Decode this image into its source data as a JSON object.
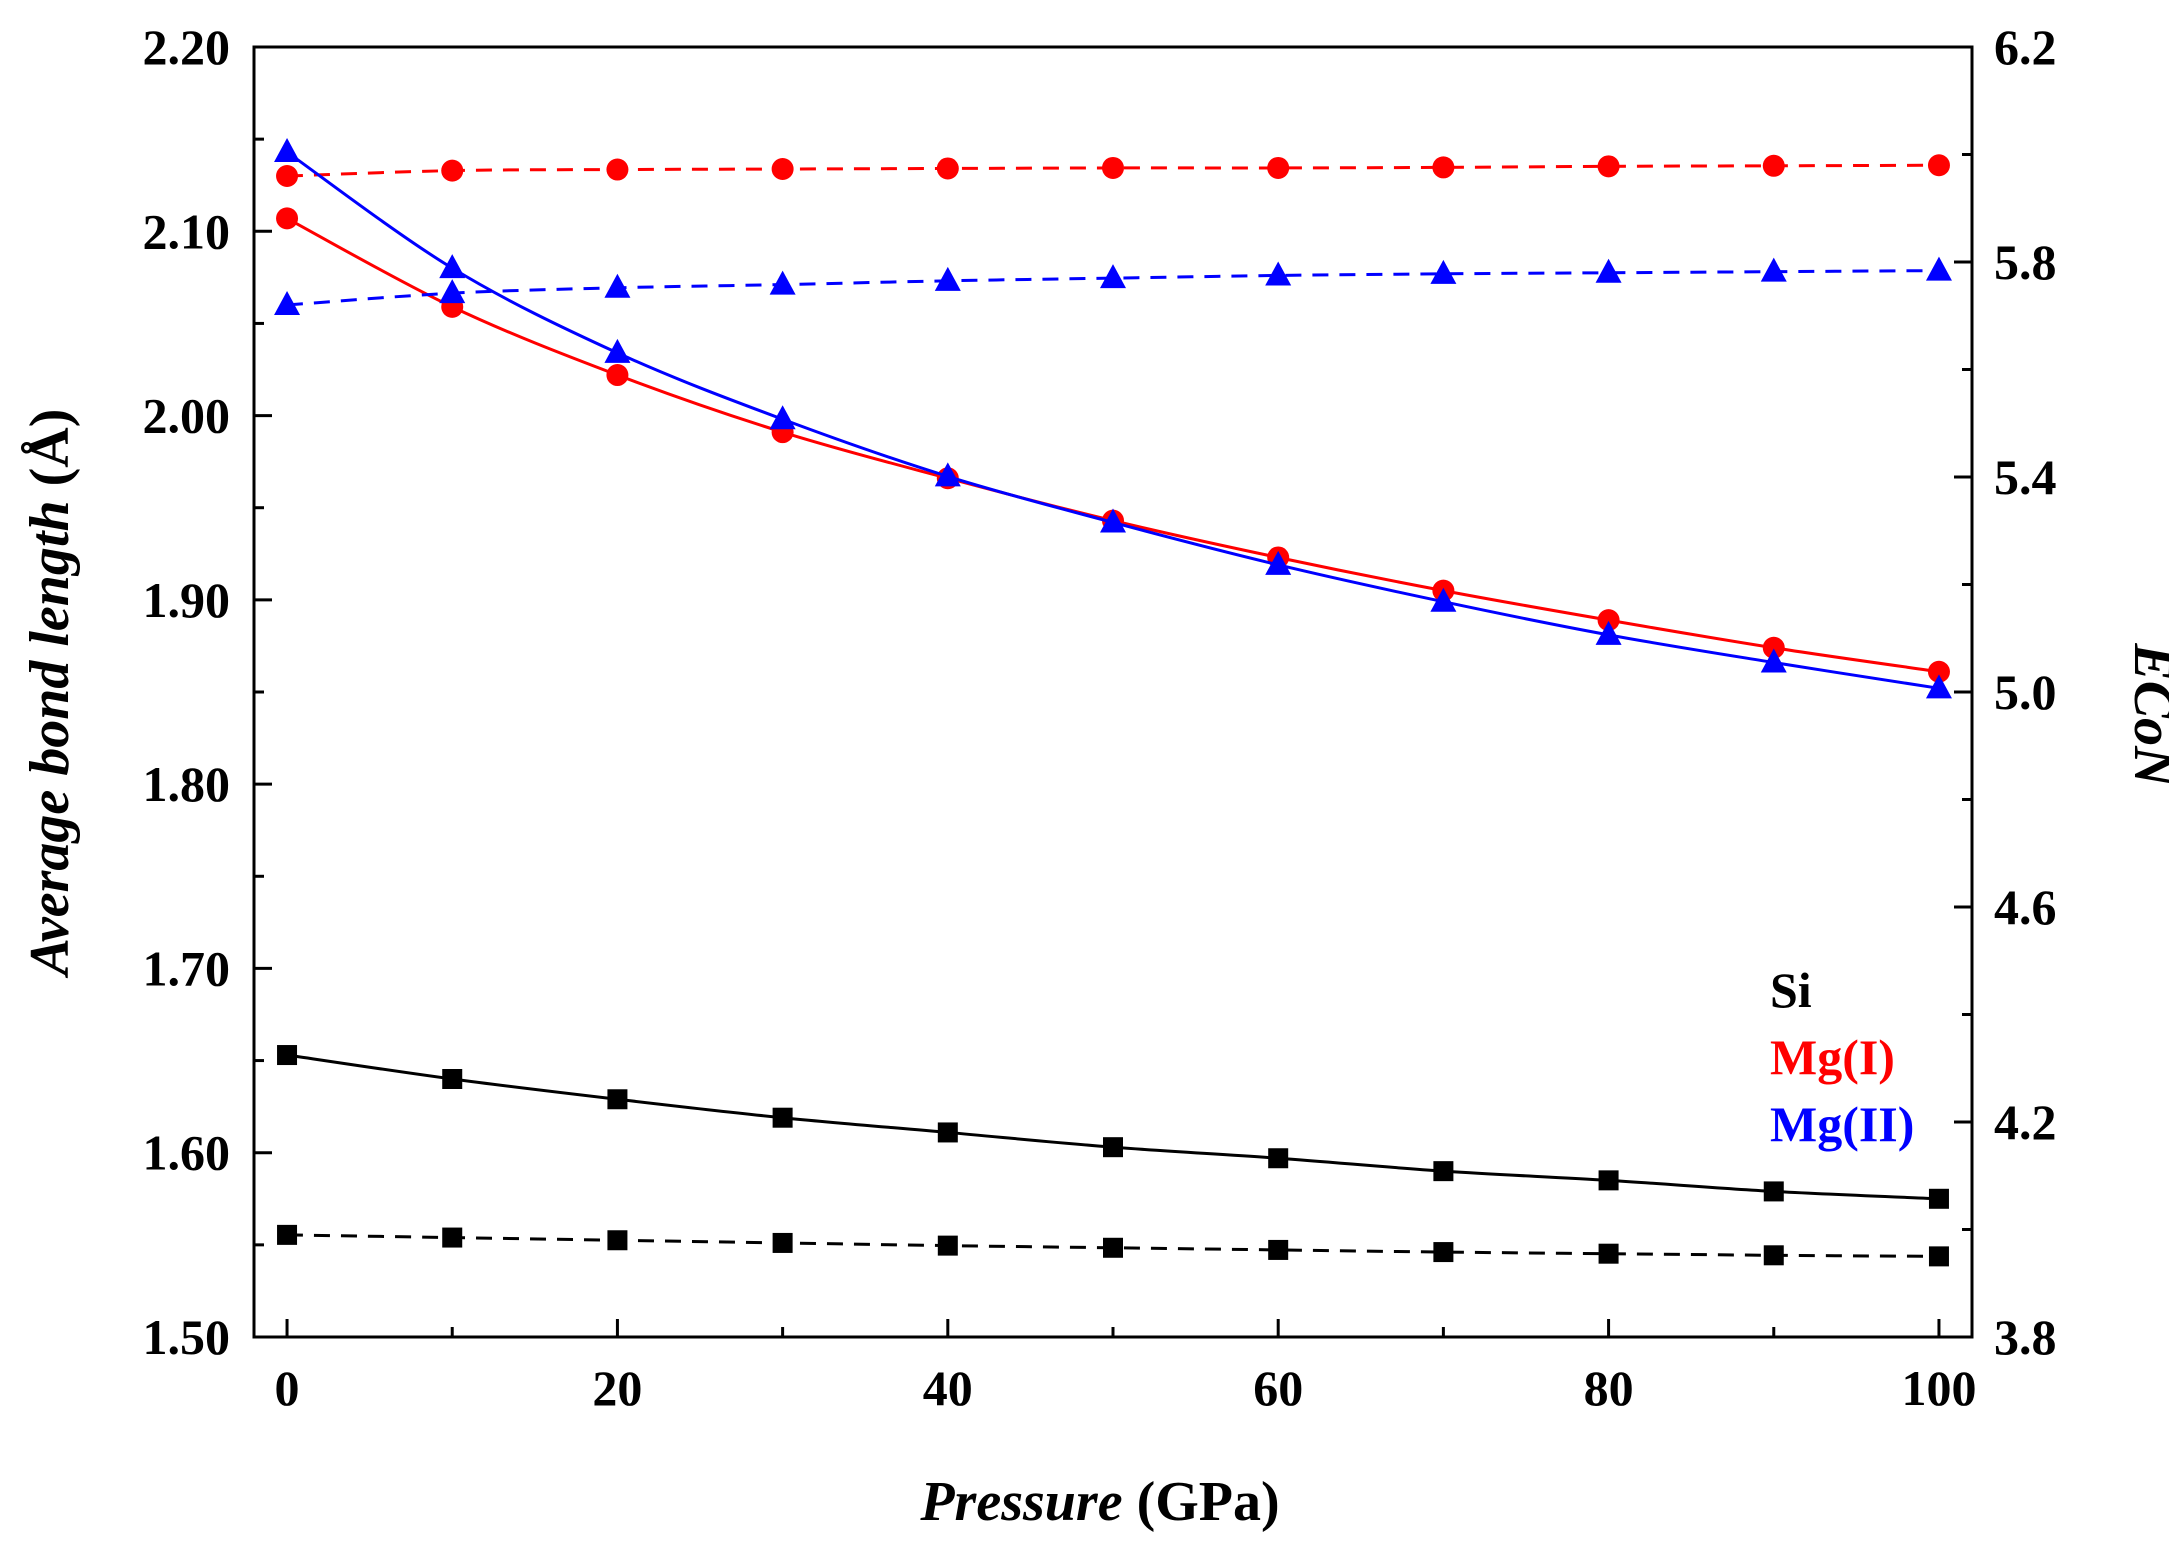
{
  "chart_data": {
    "type": "line",
    "x": [
      0,
      10,
      20,
      30,
      40,
      50,
      60,
      70,
      80,
      90,
      100
    ],
    "xlabel_italic": "Pressure",
    "xlabel_unit": " (GPa)",
    "ylabel_italic": "Average bond length",
    "ylabel_unit": " (Å)",
    "y2label": "ECoN",
    "xlim": [
      -2,
      102
    ],
    "ylim": [
      1.5,
      2.2
    ],
    "y2lim": [
      3.8,
      6.2
    ],
    "x_ticks": [
      0,
      20,
      40,
      60,
      80,
      100
    ],
    "x_tick_labels": [
      "0",
      "20",
      "40",
      "60",
      "80",
      "100"
    ],
    "y_ticks": [
      1.5,
      1.6,
      1.7,
      1.8,
      1.9,
      2.0,
      2.1,
      2.2
    ],
    "y_tick_labels": [
      "1.50",
      "1.60",
      "1.70",
      "1.80",
      "1.90",
      "2.00",
      "2.10",
      "2.20"
    ],
    "y2_ticks": [
      3.8,
      4.2,
      4.6,
      5.0,
      5.4,
      5.8,
      6.2
    ],
    "y2_tick_labels": [
      "3.8",
      "4.2",
      "4.6",
      "5.0",
      "5.4",
      "5.8",
      "6.2"
    ],
    "grid": false,
    "legend_position": "bottom-right",
    "series": [
      {
        "name": "Si bond length",
        "axis": "left",
        "marker": "square",
        "dash": "solid",
        "color": "#000000",
        "values": [
          1.653,
          1.64,
          1.629,
          1.619,
          1.611,
          1.603,
          1.597,
          1.59,
          1.585,
          1.579,
          1.575
        ]
      },
      {
        "name": "Si ECoN",
        "axis": "right",
        "marker": "square",
        "dash": "dashed",
        "color": "#000000",
        "values": [
          3.99,
          3.985,
          3.98,
          3.975,
          3.97,
          3.966,
          3.962,
          3.958,
          3.955,
          3.952,
          3.95
        ]
      },
      {
        "name": "Mg(I) bond length",
        "axis": "left",
        "marker": "circle",
        "dash": "solid",
        "color": "#ff0000",
        "values": [
          2.107,
          2.059,
          2.022,
          1.991,
          1.966,
          1.943,
          1.923,
          1.905,
          1.889,
          1.874,
          1.861
        ]
      },
      {
        "name": "Mg(I) ECoN",
        "axis": "right",
        "marker": "circle",
        "dash": "dashed",
        "color": "#ff0000",
        "values": [
          5.96,
          5.97,
          5.972,
          5.973,
          5.974,
          5.975,
          5.975,
          5.976,
          5.978,
          5.979,
          5.98
        ]
      },
      {
        "name": "Mg(II) bond length",
        "axis": "left",
        "marker": "triangle",
        "dash": "solid",
        "color": "#0000ff",
        "values": [
          2.143,
          2.08,
          2.034,
          1.998,
          1.967,
          1.942,
          1.919,
          1.899,
          1.881,
          1.866,
          1.852
        ]
      },
      {
        "name": "Mg(II) ECoN",
        "axis": "right",
        "marker": "triangle",
        "dash": "dashed",
        "color": "#0000ff",
        "values": [
          5.72,
          5.742,
          5.752,
          5.758,
          5.765,
          5.77,
          5.775,
          5.778,
          5.78,
          5.782,
          5.784
        ]
      }
    ],
    "legend": [
      {
        "label": "Si",
        "color": "#000000"
      },
      {
        "label": "Mg(I)",
        "color": "#ff0000"
      },
      {
        "label": "Mg(II)",
        "color": "#0000ff"
      }
    ]
  }
}
